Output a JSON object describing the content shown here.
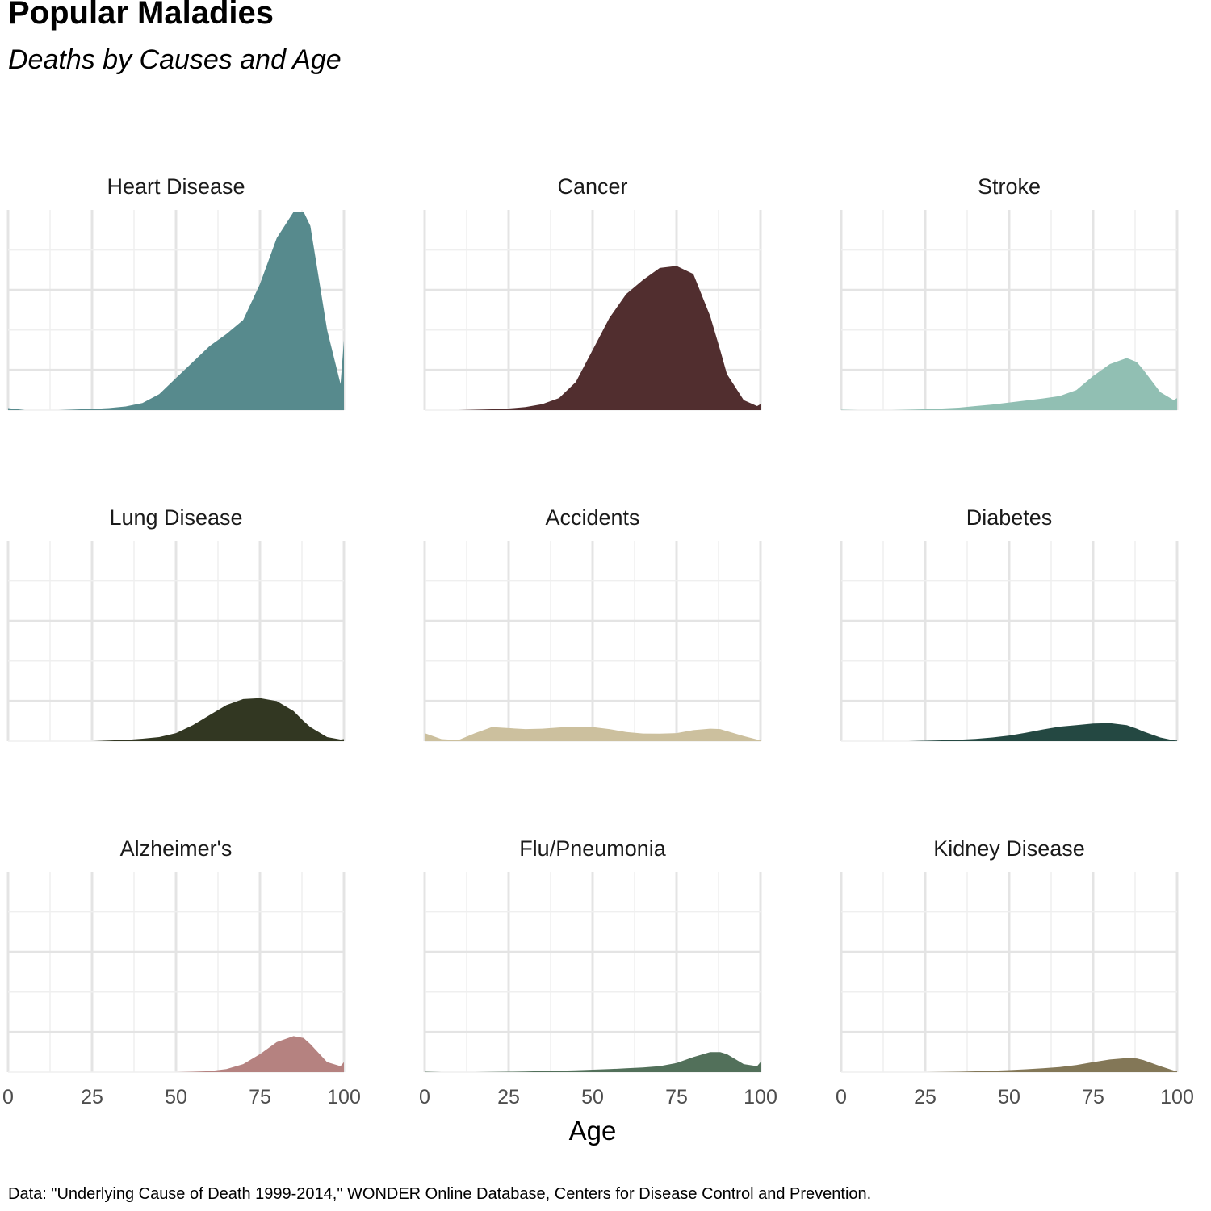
{
  "title": "Popular Maladies",
  "subtitle": "Deaths by Causes and Age",
  "caption": "Data: \"Underlying Cause of Death 1999-2014,\" WONDER Online Database, Centers for Disease Control and Prevention.",
  "chart_data": {
    "type": "area",
    "title": "Popular Maladies",
    "subtitle": "Deaths by Causes and Age",
    "xlabel": "Age",
    "ylabel": "",
    "xlim": [
      0,
      100
    ],
    "ylim": [
      0,
      1
    ],
    "x_ticks": [
      "0",
      "25",
      "50",
      "75",
      "100"
    ],
    "grid": true,
    "layout": "3x3 small multiples",
    "x": [
      0,
      5,
      10,
      15,
      20,
      25,
      30,
      35,
      40,
      45,
      50,
      55,
      60,
      65,
      70,
      75,
      80,
      85,
      88,
      90,
      95,
      99,
      100
    ],
    "series": [
      {
        "name": "Heart Disease",
        "color": "#578a8d",
        "values": [
          0.01,
          0,
          0,
          0,
          0.003,
          0.006,
          0.01,
          0.018,
          0.035,
          0.08,
          0.16,
          0.24,
          0.32,
          0.38,
          0.45,
          0.63,
          0.86,
          0.99,
          0.99,
          0.92,
          0.4,
          0.13,
          0.35
        ]
      },
      {
        "name": "Cancer",
        "color": "#512e2f",
        "values": [
          0,
          0,
          0,
          0.002,
          0.004,
          0.008,
          0.015,
          0.03,
          0.06,
          0.14,
          0.3,
          0.46,
          0.58,
          0.65,
          0.71,
          0.72,
          0.68,
          0.47,
          0.3,
          0.18,
          0.05,
          0.02,
          0.03
        ]
      },
      {
        "name": "Stroke",
        "color": "#91bfb3",
        "values": [
          0.002,
          0,
          0,
          0,
          0.002,
          0.004,
          0.008,
          0.012,
          0.02,
          0.028,
          0.038,
          0.048,
          0.058,
          0.07,
          0.1,
          0.17,
          0.23,
          0.26,
          0.24,
          0.2,
          0.09,
          0.05,
          0.06
        ]
      },
      {
        "name": "Lung Disease",
        "color": "#323722",
        "values": [
          0,
          0,
          0,
          0,
          0,
          0,
          0.003,
          0.006,
          0.012,
          0.02,
          0.04,
          0.08,
          0.13,
          0.18,
          0.21,
          0.215,
          0.2,
          0.15,
          0.1,
          0.07,
          0.02,
          0.008,
          0.01
        ]
      },
      {
        "name": "Accidents",
        "color": "#ccc09e",
        "values": [
          0.04,
          0.01,
          0.005,
          0.04,
          0.07,
          0.065,
          0.06,
          0.062,
          0.068,
          0.072,
          0.07,
          0.06,
          0.045,
          0.038,
          0.037,
          0.04,
          0.055,
          0.062,
          0.06,
          0.05,
          0.025,
          0.008,
          0.005
        ]
      },
      {
        "name": "Diabetes",
        "color": "#244842",
        "values": [
          0,
          0,
          0,
          0,
          0,
          0.002,
          0.004,
          0.007,
          0.011,
          0.018,
          0.028,
          0.042,
          0.058,
          0.072,
          0.08,
          0.088,
          0.09,
          0.08,
          0.062,
          0.048,
          0.018,
          0.004,
          0.003
        ]
      },
      {
        "name": "Alzheimer's",
        "color": "#b58280",
        "values": [
          0,
          0,
          0,
          0,
          0,
          0,
          0,
          0,
          0,
          0,
          0,
          0.002,
          0.005,
          0.015,
          0.04,
          0.09,
          0.15,
          0.18,
          0.17,
          0.14,
          0.05,
          0.03,
          0.05
        ]
      },
      {
        "name": "Flu/Pneumonia",
        "color": "#52705a",
        "values": [
          0.002,
          0,
          0,
          0,
          0.001,
          0.002,
          0.003,
          0.005,
          0.007,
          0.009,
          0.012,
          0.015,
          0.019,
          0.023,
          0.03,
          0.045,
          0.075,
          0.1,
          0.1,
          0.09,
          0.04,
          0.03,
          0.05
        ]
      },
      {
        "name": "Kidney Disease",
        "color": "#837757",
        "values": [
          0,
          0,
          0,
          0,
          0,
          0,
          0.001,
          0.002,
          0.004,
          0.007,
          0.01,
          0.014,
          0.019,
          0.025,
          0.035,
          0.05,
          0.063,
          0.07,
          0.068,
          0.06,
          0.03,
          0.008,
          0.004
        ]
      }
    ]
  }
}
